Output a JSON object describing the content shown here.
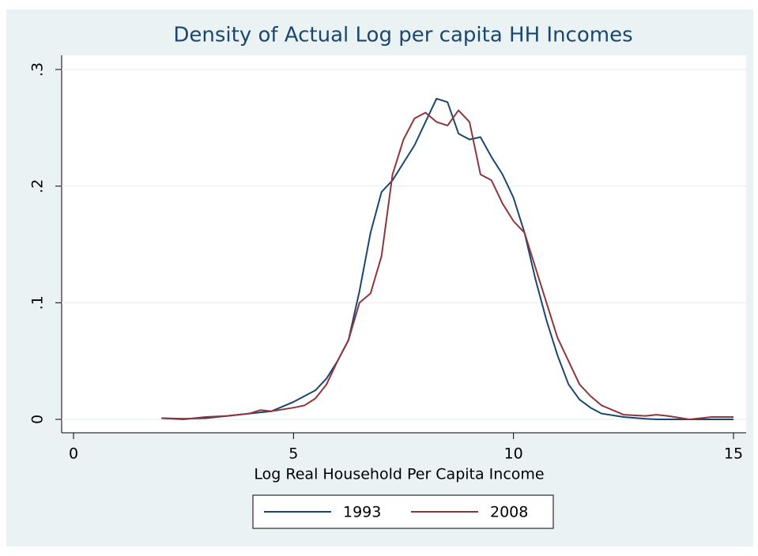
{
  "chart_data": {
    "type": "line",
    "title": "Density of Actual Log per capita HH Incomes",
    "x_label": "Log Real Household Per Capita Income",
    "x": [
      2,
      2.5,
      3,
      3.5,
      4,
      4.25,
      4.5,
      5,
      5.25,
      5.5,
      5.75,
      6,
      6.25,
      6.5,
      6.75,
      7,
      7.25,
      7.5,
      7.75,
      8,
      8.25,
      8.5,
      8.75,
      9,
      9.25,
      9.5,
      9.75,
      10,
      10.25,
      10.5,
      10.75,
      11,
      11.25,
      11.5,
      11.75,
      12,
      12.5,
      13,
      13.25,
      13.5,
      14,
      14.5,
      15
    ],
    "series": [
      {
        "name": "1993",
        "color": "#1a476f",
        "values": [
          0.001,
          0.0005,
          0.001,
          0.003,
          0.005,
          0.006,
          0.007,
          0.015,
          0.02,
          0.025,
          0.035,
          0.05,
          0.068,
          0.11,
          0.16,
          0.195,
          0.205,
          0.22,
          0.235,
          0.255,
          0.275,
          0.272,
          0.245,
          0.24,
          0.242,
          0.225,
          0.21,
          0.19,
          0.16,
          0.12,
          0.085,
          0.055,
          0.03,
          0.017,
          0.01,
          0.005,
          0.002,
          0.0005,
          0,
          0,
          0,
          0,
          0
        ]
      },
      {
        "name": "2008",
        "color": "#90353b",
        "values": [
          0.001,
          0,
          0.002,
          0.003,
          0.005,
          0.008,
          0.007,
          0.01,
          0.012,
          0.018,
          0.03,
          0.05,
          0.068,
          0.1,
          0.108,
          0.14,
          0.21,
          0.24,
          0.258,
          0.263,
          0.255,
          0.252,
          0.265,
          0.255,
          0.21,
          0.205,
          0.185,
          0.17,
          0.16,
          0.13,
          0.1,
          0.07,
          0.05,
          0.03,
          0.02,
          0.012,
          0.004,
          0.003,
          0.004,
          0.003,
          0,
          0.002,
          0.002
        ]
      }
    ],
    "xlim": [
      0,
      15
    ],
    "xticks": [
      0,
      5,
      10,
      15
    ],
    "ylim": [
      0,
      0.3
    ],
    "yticks": [
      0,
      {
        "value": 0.1,
        "label": ".1"
      },
      {
        "value": 0.2,
        "label": ".2"
      },
      {
        "value": 0.3,
        "label": ".3"
      }
    ],
    "grid": true,
    "legend": "bottom"
  }
}
